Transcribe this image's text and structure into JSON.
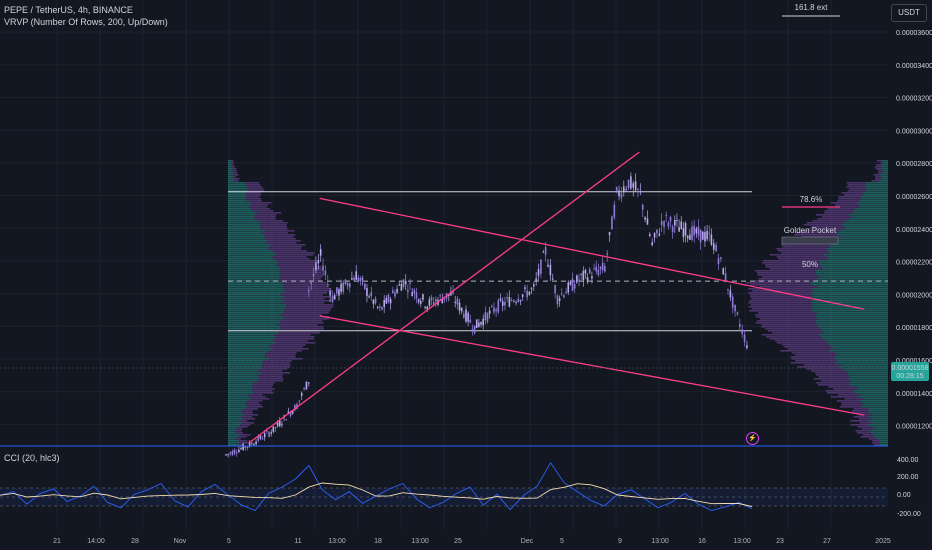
{
  "header": {
    "symbol_line": "PEPE / TetherUS, 4h, BINANCE",
    "indicator_line": "VRVP (Number Of Rows, 200, Up/Down)",
    "cci_label": "CCI (20, hlc3)"
  },
  "axis": {
    "currency_button": "USDT",
    "price_ticks": [
      "0.00003600",
      "0.00003400",
      "0.00003200",
      "0.00003000",
      "0.00002800",
      "0.00002600",
      "0.00002400",
      "0.00002200",
      "0.00002000",
      "0.00001800",
      "0.00001600",
      "0.00001400",
      "0.00001200"
    ],
    "current_price": "0.00001558",
    "countdown": "00:28:15",
    "cci_ticks": [
      "400.00",
      "200.00",
      "0.00",
      "-200.00"
    ],
    "time_labels": [
      "21",
      "14:00",
      "28",
      "Nov",
      "5",
      "11",
      "13:00",
      "18",
      "13:00",
      "25",
      "Dec",
      "5",
      "9",
      "13:00",
      "16",
      "13:00",
      "23",
      "27",
      "2025"
    ]
  },
  "annotations": {
    "ext_label": "161.8 ext",
    "fib_786": "78.6%",
    "golden_pocket": "Golden Pocket",
    "fib_50": "50%"
  },
  "colors": {
    "background": "#131722",
    "candle": "#8f7ad6",
    "candle_up": "#b8a9f0",
    "channel": "#ff3d8b",
    "volume_up": "#2a9d8f",
    "volume_down": "#7b4ba8",
    "cci_line": "#2962ff",
    "cci_ma": "#f5deb3",
    "price_badge": "#26a69a"
  },
  "chart_data": {
    "type": "candlestick",
    "title": "PEPE / TetherUS, 4h, BINANCE",
    "timeframe": "4h",
    "x_range": [
      "2024-10-18",
      "2025-01-01"
    ],
    "y_range": [
      1.1e-05,
      3.75e-05
    ],
    "price_path": [
      [
        "2024-11-06",
        1.05e-05
      ],
      [
        "2024-11-08",
        1.11e-05
      ],
      [
        "2024-11-10",
        1.2e-05
      ],
      [
        "2024-11-12",
        1.35e-05
      ],
      [
        "2024-11-13",
        1.5e-05
      ],
      [
        "2024-11-13",
        2.05e-05
      ],
      [
        "2024-11-14",
        2.25e-05
      ],
      [
        "2024-11-15",
        2e-05
      ],
      [
        "2024-11-17",
        2.14e-05
      ],
      [
        "2024-11-19",
        1.92e-05
      ],
      [
        "2024-11-21",
        2.1e-05
      ],
      [
        "2024-11-23",
        1.96e-05
      ],
      [
        "2024-11-25",
        2.02e-05
      ],
      [
        "2024-11-27",
        1.82e-05
      ],
      [
        "2024-11-29",
        1.95e-05
      ],
      [
        "2024-12-02",
        2.05e-05
      ],
      [
        "2024-12-03",
        2.28e-05
      ],
      [
        "2024-12-04",
        2e-05
      ],
      [
        "2024-12-06",
        2.12e-05
      ],
      [
        "2024-12-08",
        2.18e-05
      ],
      [
        "2024-12-09",
        2.62e-05
      ],
      [
        "2024-12-10",
        2.7e-05
      ],
      [
        "2024-12-11",
        2.62e-05
      ],
      [
        "2024-12-12",
        2.32e-05
      ],
      [
        "2024-12-13",
        2.47e-05
      ],
      [
        "2024-12-15",
        2.4e-05
      ],
      [
        "2024-12-17",
        2.36e-05
      ],
      [
        "2024-12-18",
        2.17e-05
      ],
      [
        "2024-12-19",
        1.92e-05
      ],
      [
        "2024-12-20",
        1.72e-05
      ],
      [
        "2024-12-20",
        1.56e-05
      ]
    ],
    "horizontal_levels": [
      2.64e-05,
      2.1e-05,
      1.8e-05
    ],
    "fib_levels": [
      {
        "label": "78.6%",
        "price": 2.54e-05
      },
      {
        "label": "Golden Pocket",
        "price": 2.33e-05
      },
      {
        "label": "50%",
        "price": 2.13e-05
      }
    ],
    "channel_lines": [
      {
        "from": [
          "2024-11-14",
          2.6e-05
        ],
        "to": [
          "2024-12-30",
          1.93e-05
        ]
      },
      {
        "from": [
          "2024-11-14",
          1.89e-05
        ],
        "to": [
          "2024-12-30",
          1.29e-05
        ]
      },
      {
        "from": [
          "2024-11-08",
          1.12e-05
        ],
        "to": [
          "2024-12-11",
          2.88e-05
        ]
      }
    ],
    "volume_profile": "left and right visible-range histograms, peak near 0.0000200",
    "cci": {
      "period": 20,
      "source": "hlc3",
      "y_range": [
        -300,
        480
      ],
      "bands": [
        100,
        0,
        -100
      ],
      "series": [
        20,
        60,
        -80,
        40,
        90,
        -50,
        10,
        120,
        -60,
        -120,
        30,
        80,
        150,
        -40,
        -110,
        60,
        140,
        20,
        -90,
        -150,
        40,
        110,
        200,
        350,
        80,
        -30,
        60,
        -70,
        10,
        90,
        150,
        -20,
        -120,
        -60,
        40,
        110,
        -90,
        30,
        -140,
        20,
        120,
        380,
        160,
        60,
        -40,
        -100,
        30,
        80,
        -20,
        -120,
        -60,
        40,
        -80,
        -150,
        -110,
        -60,
        -130
      ]
    }
  }
}
